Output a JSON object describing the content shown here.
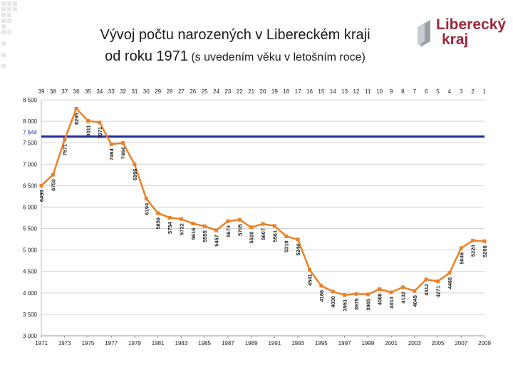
{
  "header": {
    "title_main": "Vývoj počtu narozených v Libereckém kraji",
    "title_line2_main": "od roku 1971",
    "title_line2_sub": "(s uvedením věku v letošním roce)"
  },
  "logo": {
    "line1": "Liberecký",
    "line2": "kraj",
    "color": "#9a2a3c"
  },
  "colors": {
    "series": "#e8822a",
    "reference_line": "#1f2f9a",
    "grid": "#d4d4d4",
    "deco_squares": "#e6e6e6"
  },
  "chart_data": {
    "type": "line",
    "x": [
      1971,
      1972,
      1973,
      1974,
      1975,
      1976,
      1977,
      1978,
      1979,
      1980,
      1981,
      1982,
      1983,
      1984,
      1985,
      1986,
      1987,
      1988,
      1989,
      1990,
      1991,
      1992,
      1993,
      1994,
      1995,
      1996,
      1997,
      1998,
      1999,
      2000,
      2001,
      2002,
      2003,
      2004,
      2005,
      2006,
      2007,
      2008,
      2009
    ],
    "age_labels": [
      "39",
      "38",
      "37",
      "36",
      "35",
      "34",
      "33",
      "32",
      "31",
      "30",
      "29",
      "28",
      "27",
      "26",
      "25",
      "24",
      "23",
      "22",
      "21",
      "20",
      "19",
      "18",
      "17",
      "16",
      "15",
      "14",
      "13",
      "12",
      "11",
      "10",
      "9",
      "8",
      "7",
      "6",
      "5",
      "4",
      "3",
      "2",
      "1"
    ],
    "series": [
      {
        "values": [
          6499,
          6753,
          7571,
          8295,
          8011,
          7971,
          7464,
          7494,
          6996,
          6194,
          5859,
          5754,
          5722,
          5616,
          5555,
          5457,
          5673,
          5705,
          5528,
          5607,
          5561,
          5319,
          5244,
          4541,
          4166,
          4030,
          3951,
          3975,
          3965,
          4088,
          4013,
          4132,
          4045,
          4312,
          4271,
          4466,
          5045,
          5220,
          5206
        ],
        "data_labels": [
          "6499",
          "6753",
          "7571",
          "8295",
          "8011",
          "7971",
          "7464",
          "7494",
          "6996",
          "6194",
          "5859",
          "5754",
          "5722",
          "5616",
          "5555",
          "5457",
          "5673",
          "5705",
          "5528",
          "5607",
          "5561",
          "5319",
          "5244",
          "4541",
          "4166",
          "4030",
          "3951",
          "3975",
          "3965",
          "4088",
          "4013",
          "4132",
          "4045",
          "4312",
          "4271",
          "4466",
          "5045",
          "5220",
          "5206"
        ]
      }
    ],
    "reference_line": {
      "value": 7644,
      "label": "7 644"
    },
    "ylim": [
      3000,
      8500
    ],
    "yticks": [
      3000,
      3500,
      4000,
      4500,
      5000,
      5500,
      6000,
      6500,
      7000,
      7500,
      8000,
      8500
    ],
    "ytick_labels": [
      "3 000",
      "3 500",
      "4 000",
      "4 500",
      "5 000",
      "5 500",
      "6 000",
      "6 500",
      "7 000",
      "7 500",
      "8 000",
      "8 500"
    ],
    "xtick_labels": [
      "1971",
      "1973",
      "1975",
      "1977",
      "1979",
      "1981",
      "1983",
      "1985",
      "1987",
      "1989",
      "1991",
      "1993",
      "1995",
      "1997",
      "1999",
      "2001",
      "2003",
      "2005",
      "2007",
      "2009"
    ],
    "grid": true,
    "title": "",
    "xlabel": "",
    "ylabel": ""
  }
}
